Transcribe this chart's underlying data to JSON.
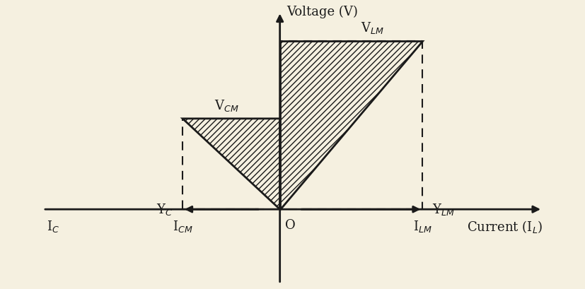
{
  "background_color": "#f5f0e0",
  "axes_color": "#1a1a1a",
  "xlim": [
    -3.8,
    4.2
  ],
  "ylim": [
    -1.2,
    3.2
  ],
  "I_CM": -1.5,
  "V_CM": 1.4,
  "I_LM": 2.2,
  "V_LM": 2.6,
  "dashed_color": "#1a1a1a",
  "label_fontsize": 13,
  "axis_label_fontsize": 13,
  "voltage_label": "Voltage (V)",
  "current_label": "Current (I$_L$)",
  "YC_label": "Y$_C$",
  "YLM_label": "Y$_{LM}$",
  "VCM_label": "V$_{CM}$",
  "VLM_label": "V$_{LM}$",
  "IC_label": "I$_C$",
  "ICM_label": "I$_{CM}$",
  "ILM_label": "I$_{LM}$",
  "O_label": "O"
}
